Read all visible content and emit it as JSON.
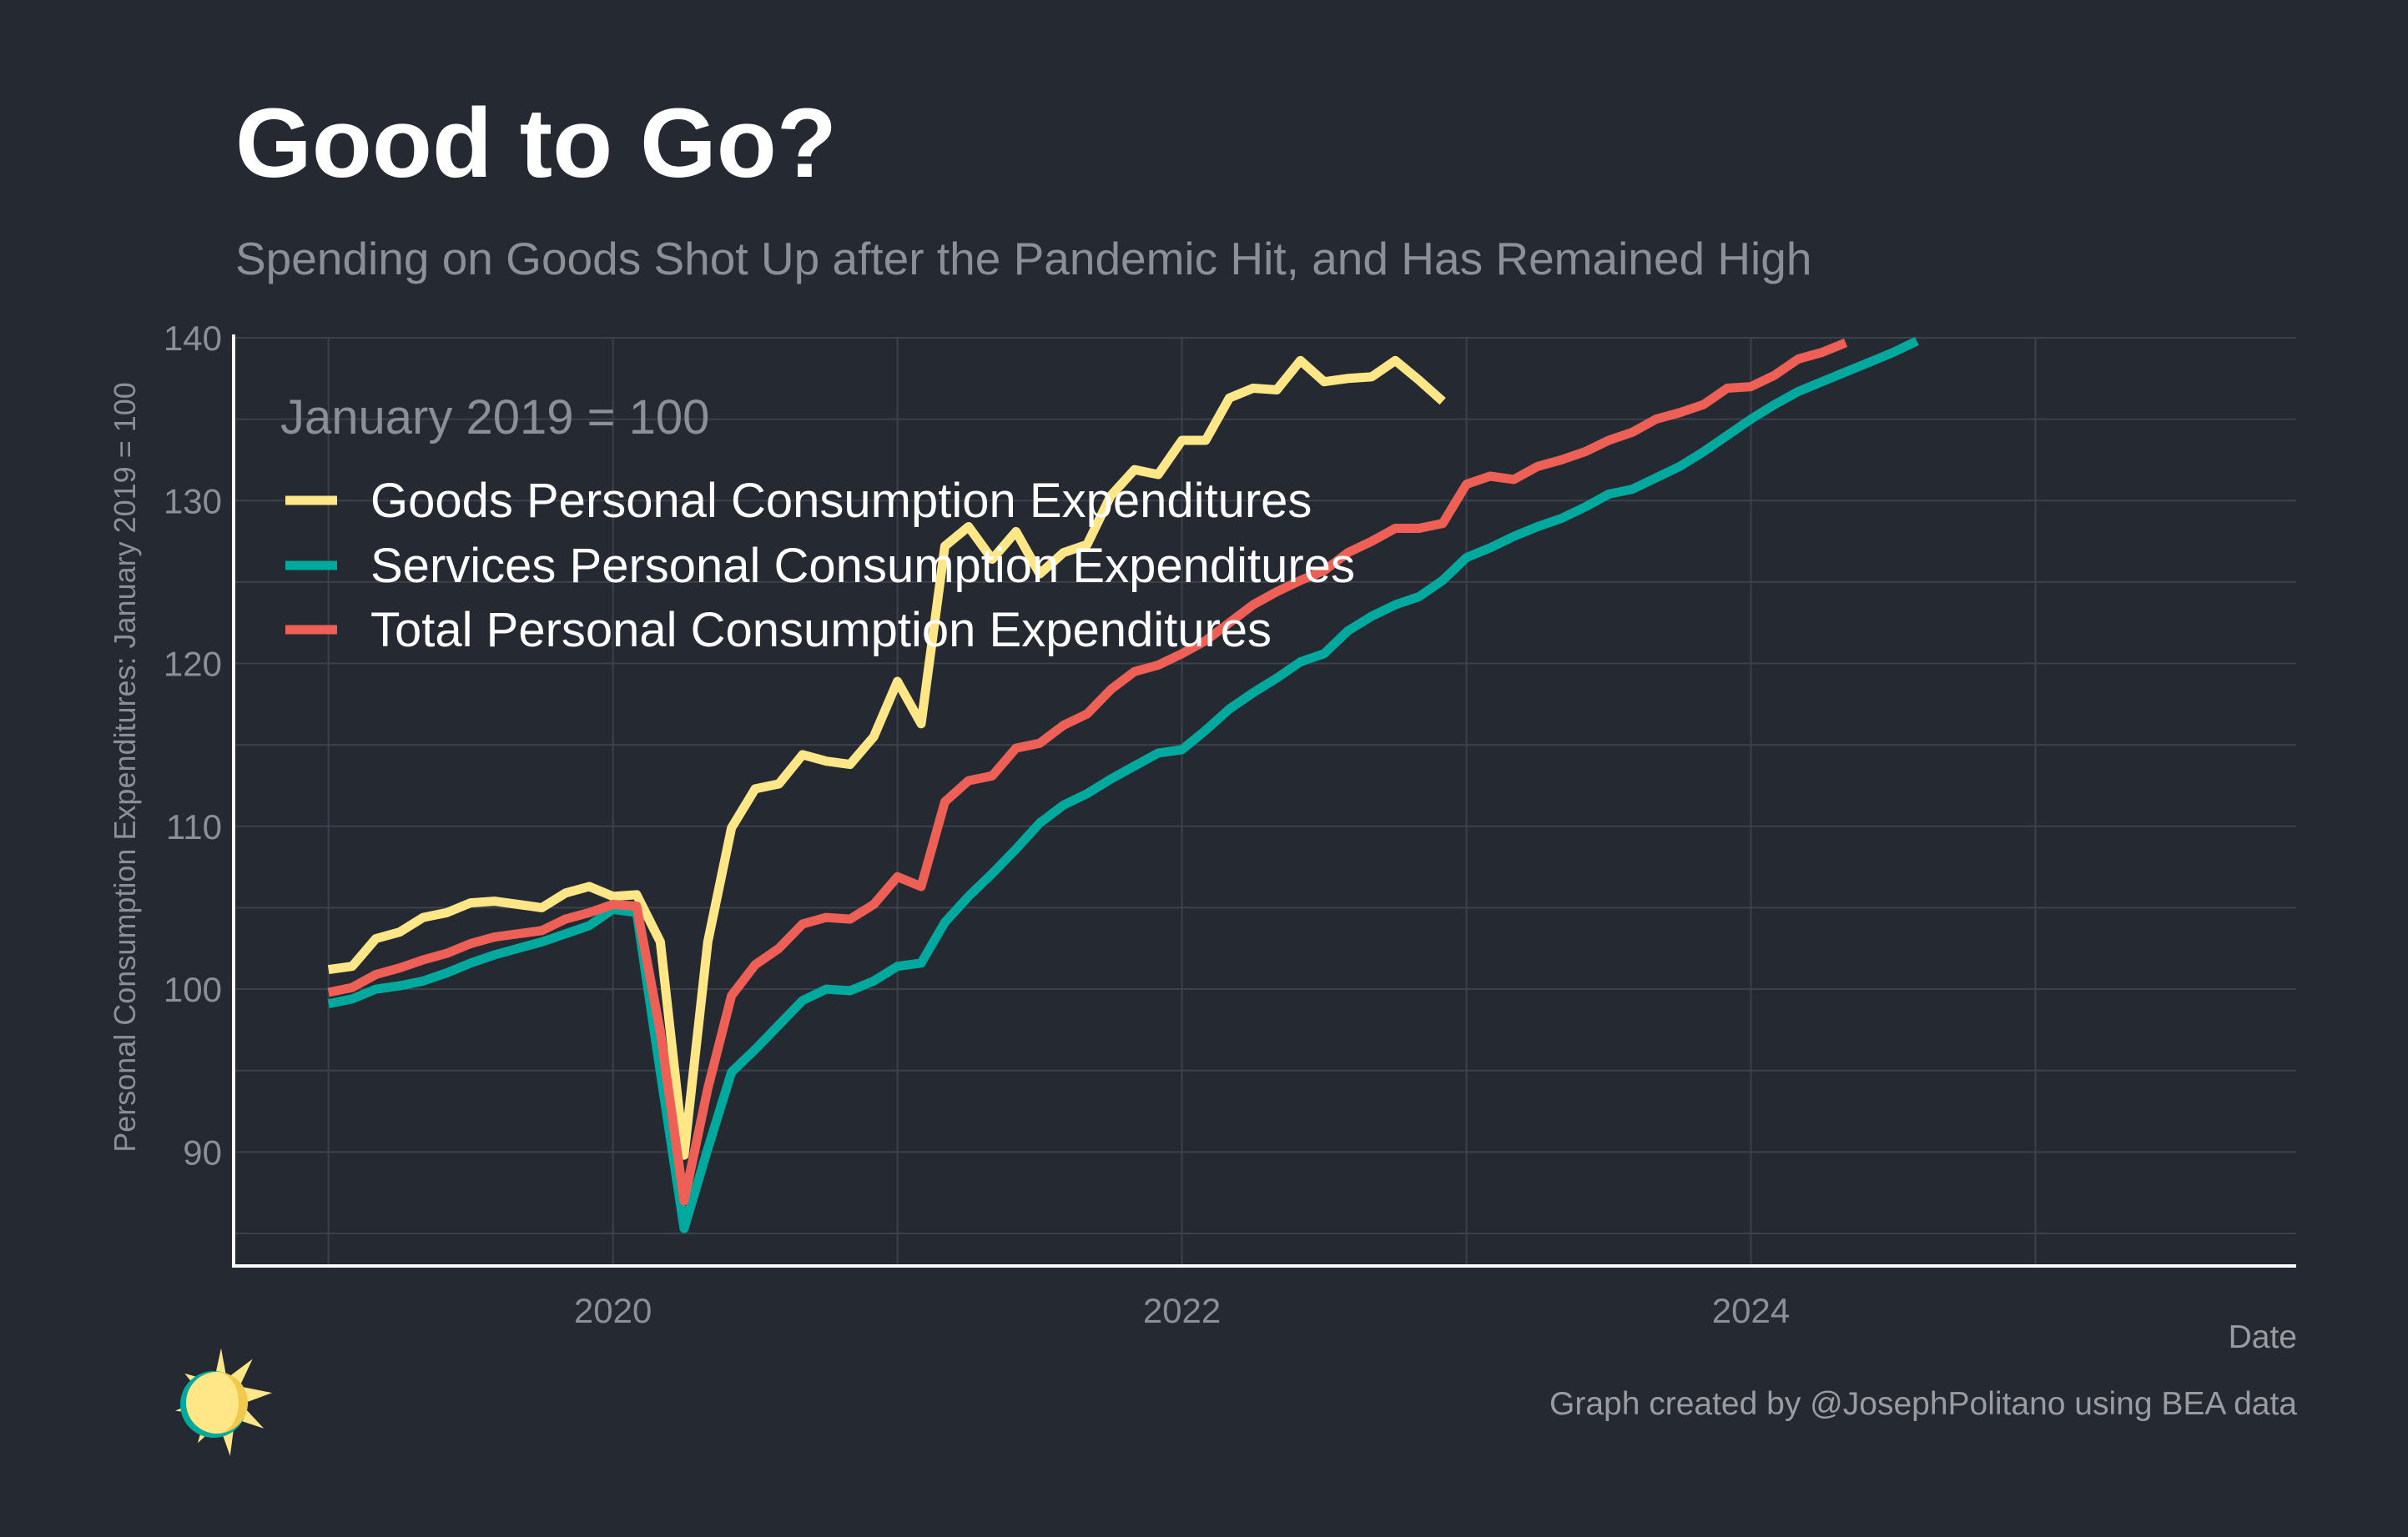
{
  "colors": {
    "background": "#252932",
    "grid": "#3c414b",
    "axis_line": "#ffffff",
    "tick_text": "#8c8f96",
    "goods": "#ffe787",
    "services": "#00a99d",
    "total": "#ee6055"
  },
  "chart_data": {
    "type": "line",
    "title": "Good to Go?",
    "subtitle": "Spending on Goods Shot Up after the Pandemic Hit, and Has Remained High",
    "xlabel": "Date",
    "ylabel": "Personal Consumption Expenditures: January 2019 = 100",
    "legend_title": "January 2019 = 100",
    "legend_position": "top-left",
    "grid": true,
    "x_ticks": [
      "2020",
      "2022",
      "2024"
    ],
    "y_ticks": [
      90,
      100,
      110,
      120,
      130,
      140
    ],
    "xlim": [
      "2018-09",
      "2025-12"
    ],
    "ylim": [
      83,
      140
    ],
    "x_start": "2019-01",
    "series": [
      {
        "name": "Goods Personal Consumption Expenditures",
        "color": "#ffe787",
        "values": [
          101.2,
          101.4,
          103.1,
          103.5,
          104.4,
          104.7,
          105.3,
          105.4,
          105.2,
          105.0,
          105.9,
          106.3,
          105.7,
          105.8,
          102.9,
          89.8,
          102.9,
          109.9,
          112.3,
          112.6,
          114.4,
          114.0,
          113.8,
          115.5,
          118.9,
          116.3,
          127.2,
          128.4,
          126.4,
          128.1,
          125.5,
          126.8,
          127.3,
          130.3,
          131.9,
          131.6,
          133.7,
          133.7,
          136.3,
          136.9,
          136.8,
          138.6,
          137.3,
          137.5,
          137.6,
          138.6,
          137.4,
          136.1
        ]
      },
      {
        "name": "Services Personal Consumption Expenditures",
        "color": "#00a99d",
        "values": [
          99.1,
          99.4,
          100.0,
          100.2,
          100.5,
          101.0,
          101.6,
          102.1,
          102.5,
          102.9,
          103.4,
          103.9,
          104.9,
          104.7,
          94.9,
          85.3,
          90.2,
          94.9,
          96.3,
          97.8,
          99.3,
          100.0,
          99.9,
          100.5,
          101.4,
          101.6,
          104.1,
          105.7,
          107.1,
          108.6,
          110.2,
          111.3,
          112.0,
          112.9,
          113.7,
          114.5,
          114.7,
          115.9,
          117.2,
          118.2,
          119.1,
          120.1,
          120.6,
          122.0,
          122.9,
          123.6,
          124.1,
          125.1,
          126.5,
          127.1,
          127.8,
          128.4,
          128.9,
          129.6,
          130.4,
          130.7,
          131.4,
          132.1,
          133.0,
          134.0,
          135.0,
          135.9,
          136.7,
          137.3,
          137.9,
          138.5,
          139.1,
          139.8
        ]
      },
      {
        "name": "Total Personal Consumption Expenditures",
        "color": "#ee6055",
        "values": [
          99.8,
          100.1,
          100.9,
          101.3,
          101.8,
          102.2,
          102.8,
          103.2,
          103.4,
          103.6,
          104.3,
          104.7,
          105.2,
          105.1,
          97.4,
          87.0,
          93.9,
          99.6,
          101.5,
          102.5,
          104.0,
          104.4,
          104.3,
          105.2,
          106.9,
          106.3,
          111.5,
          112.8,
          113.1,
          114.8,
          115.1,
          116.2,
          116.9,
          118.4,
          119.5,
          119.9,
          120.6,
          121.4,
          122.5,
          123.6,
          124.4,
          125.1,
          125.7,
          126.8,
          127.5,
          128.3,
          128.3,
          128.6,
          131.0,
          131.5,
          131.3,
          132.1,
          132.5,
          133.0,
          133.7,
          134.2,
          135.0,
          135.4,
          135.9,
          136.9,
          137.0,
          137.7,
          138.7,
          139.1,
          139.7
        ]
      }
    ]
  },
  "footer": {
    "credit": "Graph created by @JosephPolitano using BEA data"
  },
  "logo_icon": "sun-icon"
}
